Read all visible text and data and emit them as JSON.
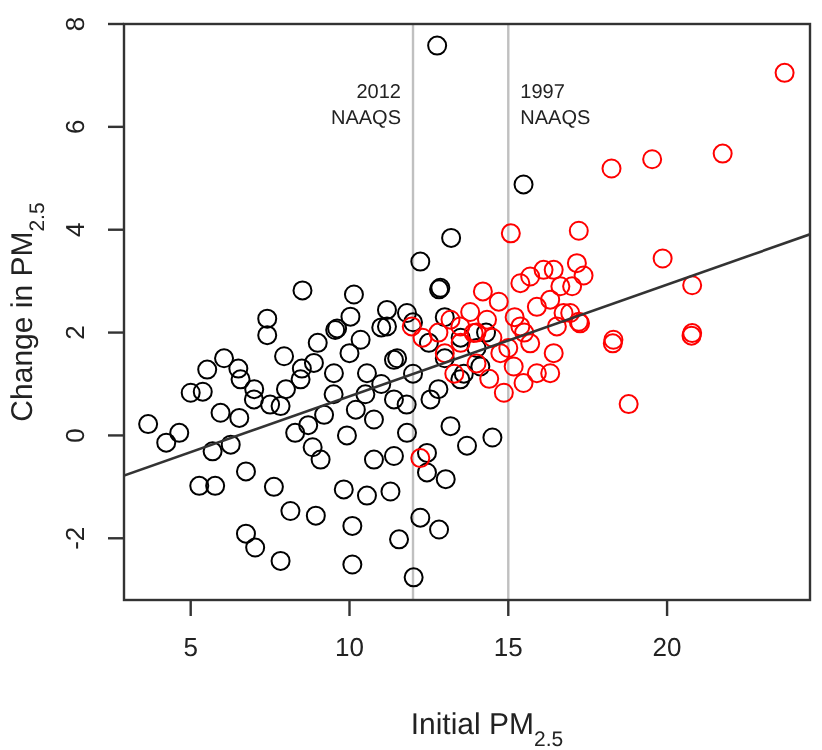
{
  "chart_data": {
    "type": "scatter",
    "xlabel": "Initial PM$_{2.5}$",
    "ylabel": "Change in PM$_{2.5}$",
    "xlim": [
      2.9,
      24.5
    ],
    "ylim": [
      -3.2,
      8
    ],
    "xticks": [
      5,
      10,
      15,
      20
    ],
    "yticks": [
      -2,
      0,
      2,
      4,
      6,
      8
    ],
    "grid": false,
    "marker": "circle",
    "ref_lines": [
      {
        "axis": "x",
        "value": 12,
        "label": "2012 NAAQS",
        "color": "#c0c0c0"
      },
      {
        "axis": "x",
        "value": 15,
        "label": "1997 NAAQS",
        "color": "#c0c0c0"
      }
    ],
    "series": [
      {
        "color": "#000000",
        "x": [
          3.66,
          4.23,
          4.64,
          5.0,
          5.38,
          5.52,
          6.05,
          5.27,
          5.77,
          6.74,
          7.03,
          7.83,
          6.74,
          7.62,
          8.14,
          8.94,
          10.09,
          10.09,
          11.56,
          12.02,
          12.23,
          12.82,
          13.03,
          7.41,
          7.41,
          7.94,
          6.53,
          8.88,
          9.55,
          10.03,
          6.26,
          5.69,
          8.29,
          8.84,
          9.09,
          9.82,
          10.55,
          11.29,
          11.4,
          10.77,
          9.92,
          10.77,
          11.4,
          11.81,
          12.44,
          7.83,
          6.99,
          8.46,
          9.51,
          10.55,
          11.4,
          10.35,
          11.18,
          6.57,
          5.94,
          12.76,
          13.2,
          12.23,
          8.52,
          10.14,
          12.82,
          11.18,
          11.81,
          9.61,
          15.48,
          12.86,
          14.5,
          13.7,
          12.44,
          13.18,
          12.55,
          13.49,
          14.12,
          11.0,
          11.5,
          12.0,
          12.5,
          13.0,
          13.5,
          10.5,
          10.0,
          9.5,
          9.0,
          8.5,
          8.0,
          11.0,
          12.0,
          13.0,
          14.0,
          12.8,
          11.8,
          10.2,
          7.5,
          7.0,
          6.5,
          9.2,
          8.7,
          13.6,
          14.3
        ],
        "values": [
          0.22,
          -0.14,
          0.05,
          0.83,
          0.85,
          1.28,
          1.5,
          -0.98,
          -0.98,
          -1.91,
          -2.18,
          -2.44,
          -0.7,
          -1.0,
          -1.47,
          -1.56,
          -2.51,
          -1.76,
          -2.02,
          -2.76,
          -1.6,
          -1.83,
          -0.85,
          2.27,
          1.95,
          1.54,
          0.34,
          1.41,
          2.05,
          2.31,
          -0.18,
          -0.31,
          0.05,
          -0.23,
          -0.47,
          -1.05,
          -1.17,
          -1.09,
          -0.4,
          -0.47,
          0.0,
          0.31,
          0.7,
          0.05,
          -0.34,
          0.57,
          0.7,
          1.09,
          1.21,
          1.21,
          1.47,
          1.86,
          2.12,
          1.09,
          0.44,
          7.58,
          3.84,
          3.38,
          2.82,
          2.74,
          2.84,
          2.44,
          2.38,
          2.08,
          4.88,
          2.87,
          -0.04,
          -0.2,
          -0.72,
          0.18,
          0.7,
          1.09,
          1.34,
          1.0,
          1.5,
          1.2,
          1.8,
          1.5,
          1.9,
          0.8,
          1.6,
          0.8,
          1.8,
          1.3,
          0.9,
          2.1,
          2.2,
          2.3,
          1.7,
          0.9,
          0.6,
          0.5,
          0.6,
          0.9,
          1.3,
          0.4,
          0.2,
          1.2,
          2.0
        ]
      },
      {
        "color": "#ff0000",
        "x": [
          23.7,
          18.25,
          19.53,
          21.75,
          15.08,
          17.22,
          19.86,
          20.79,
          17.16,
          17.37,
          16.11,
          16.43,
          15.69,
          17.01,
          16.64,
          15.38,
          16.32,
          17.26,
          16.74,
          20.79,
          18.31,
          20.77,
          18.29,
          18.79,
          17.22,
          16.43,
          16.32,
          15.9,
          15.48,
          14.86,
          16.53,
          15.69,
          15.17,
          14.75,
          13.91,
          13.49,
          14.33,
          16.95,
          15.38,
          11.96,
          13.18,
          13.0,
          13.5,
          14.0,
          14.5,
          14.0,
          13.8,
          14.7,
          15.2,
          12.8,
          12.3,
          13.3,
          14.4,
          15.0,
          15.5,
          15.9,
          14.2,
          12.23
        ],
        "values": [
          7.05,
          5.19,
          5.37,
          5.48,
          3.93,
          3.98,
          3.44,
          2.92,
          3.35,
          3.11,
          3.22,
          3.22,
          3.09,
          2.9,
          2.9,
          2.96,
          2.64,
          2.18,
          2.38,
          1.99,
          1.86,
          1.94,
          1.79,
          0.61,
          2.21,
          1.6,
          1.21,
          1.21,
          1.02,
          0.83,
          2.12,
          1.79,
          1.34,
          1.6,
          1.99,
          2.12,
          2.25,
          2.38,
          2.12,
          2.12,
          2.25,
          1.6,
          1.8,
          2.0,
          1.9,
          1.4,
          2.4,
          2.6,
          2.3,
          2.0,
          1.9,
          1.2,
          1.1,
          1.7,
          2.0,
          2.5,
          2.8,
          -0.44
        ]
      },
      {
        "type": "line",
        "marker": "none",
        "color": "#333333",
        "x": [
          2.9,
          24.5
        ],
        "values": [
          -0.78,
          3.91
        ]
      }
    ]
  }
}
